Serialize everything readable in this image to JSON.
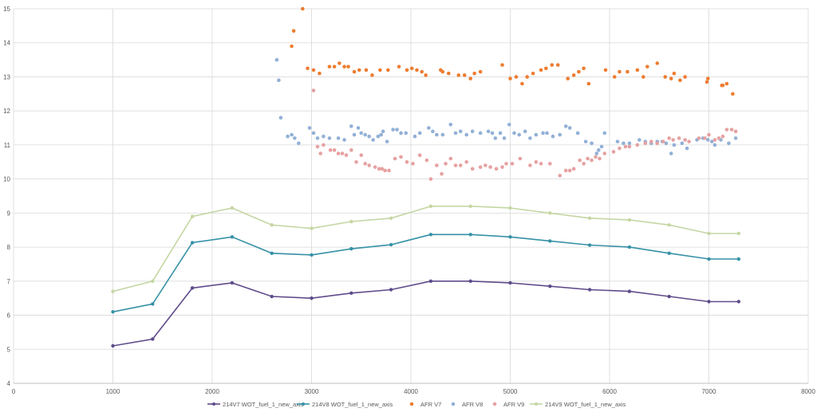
{
  "chart_data": {
    "type": "scatter",
    "title": "",
    "xlabel": "",
    "ylabel": "",
    "xlim": [
      0,
      8000
    ],
    "ylim": [
      4,
      15
    ],
    "xticks": [
      0,
      1000,
      2000,
      3000,
      4000,
      5000,
      6000,
      7000,
      8000
    ],
    "yticks": [
      4,
      5,
      6,
      7,
      8,
      9,
      10,
      11,
      12,
      13,
      14,
      15
    ],
    "grid": true,
    "legend_position": "bottom",
    "series": [
      {
        "name": "214V7 WOT_fuel_1_new_axis",
        "kind": "line",
        "color": "#5f4b8b",
        "points": [
          [
            1000,
            5.1
          ],
          [
            1400,
            5.3
          ],
          [
            1800,
            6.8
          ],
          [
            2200,
            6.95
          ],
          [
            2600,
            6.55
          ],
          [
            3000,
            6.5
          ],
          [
            3400,
            6.65
          ],
          [
            3800,
            6.75
          ],
          [
            4200,
            7.0
          ],
          [
            4600,
            7.0
          ],
          [
            5000,
            6.95
          ],
          [
            5400,
            6.85
          ],
          [
            5800,
            6.75
          ],
          [
            6200,
            6.7
          ],
          [
            6600,
            6.55
          ],
          [
            7000,
            6.4
          ],
          [
            7300,
            6.4
          ]
        ]
      },
      {
        "name": "214V8 WOT_fuel_1_new_axis",
        "kind": "line",
        "color": "#3591a6",
        "points": [
          [
            1000,
            6.1
          ],
          [
            1400,
            6.33
          ],
          [
            1800,
            8.13
          ],
          [
            2200,
            8.3
          ],
          [
            2600,
            7.82
          ],
          [
            3000,
            7.77
          ],
          [
            3400,
            7.95
          ],
          [
            3800,
            8.07
          ],
          [
            4200,
            8.37
          ],
          [
            4600,
            8.37
          ],
          [
            5000,
            8.3
          ],
          [
            5400,
            8.18
          ],
          [
            5800,
            8.06
          ],
          [
            6200,
            8.0
          ],
          [
            6600,
            7.82
          ],
          [
            7000,
            7.65
          ],
          [
            7300,
            7.65
          ]
        ]
      },
      {
        "name": "AFR V7",
        "kind": "scatter",
        "color": "#ed7d31",
        "points": [
          [
            2800,
            13.9
          ],
          [
            2820,
            14.35
          ],
          [
            2910,
            15.0
          ],
          [
            2960,
            13.25
          ],
          [
            3020,
            13.2
          ],
          [
            3080,
            13.1
          ],
          [
            3180,
            13.3
          ],
          [
            3230,
            13.3
          ],
          [
            3280,
            13.4
          ],
          [
            3330,
            13.3
          ],
          [
            3370,
            13.3
          ],
          [
            3430,
            13.15
          ],
          [
            3480,
            13.2
          ],
          [
            3550,
            13.2
          ],
          [
            3610,
            13.05
          ],
          [
            3690,
            13.2
          ],
          [
            3770,
            13.2
          ],
          [
            3880,
            13.3
          ],
          [
            3960,
            13.2
          ],
          [
            4010,
            13.25
          ],
          [
            4060,
            13.2
          ],
          [
            4110,
            13.15
          ],
          [
            4150,
            13.05
          ],
          [
            4300,
            13.2
          ],
          [
            4320,
            13.15
          ],
          [
            4380,
            13.1
          ],
          [
            4480,
            13.05
          ],
          [
            4540,
            13.05
          ],
          [
            4600,
            12.95
          ],
          [
            4640,
            13.1
          ],
          [
            4700,
            13.15
          ],
          [
            4920,
            13.35
          ],
          [
            5000,
            12.95
          ],
          [
            5060,
            13.0
          ],
          [
            5120,
            12.8
          ],
          [
            5170,
            13.0
          ],
          [
            5230,
            13.1
          ],
          [
            5310,
            13.2
          ],
          [
            5360,
            13.25
          ],
          [
            5420,
            13.35
          ],
          [
            5480,
            13.35
          ],
          [
            5580,
            12.95
          ],
          [
            5640,
            13.05
          ],
          [
            5690,
            13.15
          ],
          [
            5740,
            13.25
          ],
          [
            5790,
            12.8
          ],
          [
            5960,
            13.2
          ],
          [
            6050,
            13.0
          ],
          [
            6100,
            13.15
          ],
          [
            6180,
            13.15
          ],
          [
            6280,
            13.2
          ],
          [
            6340,
            13.0
          ],
          [
            6380,
            13.3
          ],
          [
            6480,
            13.4
          ],
          [
            6560,
            13.0
          ],
          [
            6620,
            12.95
          ],
          [
            6650,
            13.1
          ],
          [
            6710,
            12.9
          ],
          [
            6760,
            13.0
          ],
          [
            6980,
            12.85
          ],
          [
            6990,
            12.95
          ],
          [
            7130,
            12.75
          ],
          [
            7140,
            12.75
          ],
          [
            7180,
            12.8
          ],
          [
            7240,
            12.5
          ]
        ]
      },
      {
        "name": "AFR V8",
        "kind": "scatter",
        "color": "#92b0d6",
        "points": [
          [
            2650,
            13.5
          ],
          [
            2670,
            12.9
          ],
          [
            2690,
            11.8
          ],
          [
            2760,
            11.25
          ],
          [
            2800,
            11.3
          ],
          [
            2830,
            11.2
          ],
          [
            2870,
            11.05
          ],
          [
            2980,
            11.5
          ],
          [
            3020,
            11.35
          ],
          [
            3060,
            11.2
          ],
          [
            3120,
            11.25
          ],
          [
            3180,
            11.2
          ],
          [
            3270,
            11.2
          ],
          [
            3330,
            11.15
          ],
          [
            3400,
            11.55
          ],
          [
            3430,
            11.3
          ],
          [
            3470,
            11.5
          ],
          [
            3500,
            11.35
          ],
          [
            3540,
            11.3
          ],
          [
            3580,
            11.25
          ],
          [
            3620,
            11.15
          ],
          [
            3670,
            11.25
          ],
          [
            3700,
            11.3
          ],
          [
            3720,
            11.4
          ],
          [
            3760,
            11.1
          ],
          [
            3820,
            11.45
          ],
          [
            3860,
            11.45
          ],
          [
            3900,
            11.35
          ],
          [
            3950,
            11.35
          ],
          [
            4040,
            11.25
          ],
          [
            4090,
            11.35
          ],
          [
            4180,
            11.5
          ],
          [
            4220,
            11.4
          ],
          [
            4260,
            11.3
          ],
          [
            4320,
            11.3
          ],
          [
            4400,
            11.6
          ],
          [
            4450,
            11.35
          ],
          [
            4500,
            11.4
          ],
          [
            4560,
            11.3
          ],
          [
            4620,
            11.4
          ],
          [
            4700,
            11.35
          ],
          [
            4780,
            11.4
          ],
          [
            4820,
            11.35
          ],
          [
            4850,
            11.2
          ],
          [
            4900,
            11.35
          ],
          [
            4940,
            11.2
          ],
          [
            4990,
            11.6
          ],
          [
            5040,
            11.35
          ],
          [
            5090,
            11.3
          ],
          [
            5150,
            11.4
          ],
          [
            5200,
            11.2
          ],
          [
            5260,
            11.3
          ],
          [
            5330,
            11.35
          ],
          [
            5370,
            11.35
          ],
          [
            5430,
            11.25
          ],
          [
            5500,
            11.3
          ],
          [
            5560,
            11.55
          ],
          [
            5600,
            11.5
          ],
          [
            5680,
            11.35
          ],
          [
            5760,
            11.1
          ],
          [
            5820,
            11.05
          ],
          [
            5870,
            10.75
          ],
          [
            5890,
            10.85
          ],
          [
            5920,
            10.95
          ],
          [
            5950,
            11.35
          ],
          [
            6080,
            11.1
          ],
          [
            6140,
            11.05
          ],
          [
            6200,
            11.05
          ],
          [
            6300,
            11.15
          ],
          [
            6360,
            11.1
          ],
          [
            6420,
            11.05
          ],
          [
            6480,
            11.1
          ],
          [
            6530,
            11.1
          ],
          [
            6570,
            11.05
          ],
          [
            6620,
            10.75
          ],
          [
            6650,
            11.0
          ],
          [
            6730,
            11.05
          ],
          [
            6780,
            10.9
          ],
          [
            6880,
            11.15
          ],
          [
            6940,
            11.2
          ],
          [
            6990,
            11.15
          ],
          [
            7030,
            11.1
          ],
          [
            7060,
            11.0
          ],
          [
            7120,
            11.15
          ],
          [
            7200,
            11.05
          ],
          [
            7270,
            11.2
          ]
        ]
      },
      {
        "name": "AFR V9",
        "kind": "scatter",
        "color": "#e6a1a1",
        "points": [
          [
            3020,
            12.6
          ],
          [
            3060,
            10.95
          ],
          [
            3090,
            10.75
          ],
          [
            3120,
            11.0
          ],
          [
            3190,
            10.85
          ],
          [
            3230,
            10.85
          ],
          [
            3270,
            10.75
          ],
          [
            3310,
            10.75
          ],
          [
            3350,
            10.7
          ],
          [
            3400,
            10.85
          ],
          [
            3450,
            10.5
          ],
          [
            3500,
            10.7
          ],
          [
            3540,
            10.45
          ],
          [
            3580,
            10.4
          ],
          [
            3640,
            10.35
          ],
          [
            3680,
            10.3
          ],
          [
            3710,
            10.3
          ],
          [
            3740,
            10.25
          ],
          [
            3780,
            10.25
          ],
          [
            3840,
            10.6
          ],
          [
            3900,
            10.65
          ],
          [
            3960,
            10.5
          ],
          [
            4020,
            10.45
          ],
          [
            4090,
            10.7
          ],
          [
            4160,
            10.55
          ],
          [
            4200,
            10.0
          ],
          [
            4260,
            10.4
          ],
          [
            4310,
            10.15
          ],
          [
            4350,
            10.45
          ],
          [
            4400,
            10.6
          ],
          [
            4450,
            10.4
          ],
          [
            4500,
            10.4
          ],
          [
            4560,
            10.5
          ],
          [
            4620,
            10.3
          ],
          [
            4700,
            10.35
          ],
          [
            4750,
            10.4
          ],
          [
            4800,
            10.35
          ],
          [
            4860,
            10.3
          ],
          [
            4920,
            10.35
          ],
          [
            4960,
            10.45
          ],
          [
            5020,
            10.45
          ],
          [
            5100,
            10.6
          ],
          [
            5200,
            10.4
          ],
          [
            5260,
            10.5
          ],
          [
            5310,
            10.45
          ],
          [
            5400,
            10.45
          ],
          [
            5500,
            10.1
          ],
          [
            5560,
            10.25
          ],
          [
            5600,
            10.25
          ],
          [
            5640,
            10.3
          ],
          [
            5700,
            10.55
          ],
          [
            5740,
            10.45
          ],
          [
            5780,
            10.6
          ],
          [
            5820,
            10.55
          ],
          [
            5860,
            10.65
          ],
          [
            5900,
            10.6
          ],
          [
            5950,
            10.75
          ],
          [
            6040,
            10.8
          ],
          [
            6100,
            10.9
          ],
          [
            6160,
            10.95
          ],
          [
            6200,
            10.95
          ],
          [
            6280,
            11.0
          ],
          [
            6360,
            11.05
          ],
          [
            6420,
            11.1
          ],
          [
            6480,
            11.05
          ],
          [
            6540,
            11.1
          ],
          [
            6600,
            11.2
          ],
          [
            6640,
            11.15
          ],
          [
            6700,
            11.2
          ],
          [
            6760,
            11.15
          ],
          [
            6800,
            11.1
          ],
          [
            6900,
            11.2
          ],
          [
            6960,
            11.2
          ],
          [
            7000,
            11.3
          ],
          [
            7060,
            11.15
          ],
          [
            7100,
            11.2
          ],
          [
            7140,
            11.25
          ],
          [
            7180,
            11.45
          ],
          [
            7230,
            11.45
          ],
          [
            7270,
            11.4
          ]
        ]
      },
      {
        "name": "214V9 WOT_fuel_1_new_axis",
        "kind": "line",
        "color": "#c5d6a3",
        "points": [
          [
            1000,
            6.7
          ],
          [
            1400,
            7.0
          ],
          [
            1800,
            8.9
          ],
          [
            2200,
            9.15
          ],
          [
            2600,
            8.65
          ],
          [
            3000,
            8.55
          ],
          [
            3400,
            8.75
          ],
          [
            3800,
            8.85
          ],
          [
            4200,
            9.2
          ],
          [
            4600,
            9.2
          ],
          [
            5000,
            9.15
          ],
          [
            5400,
            9.0
          ],
          [
            5800,
            8.85
          ],
          [
            6200,
            8.8
          ],
          [
            6600,
            8.65
          ],
          [
            7000,
            8.4
          ],
          [
            7300,
            8.4
          ]
        ]
      }
    ]
  }
}
